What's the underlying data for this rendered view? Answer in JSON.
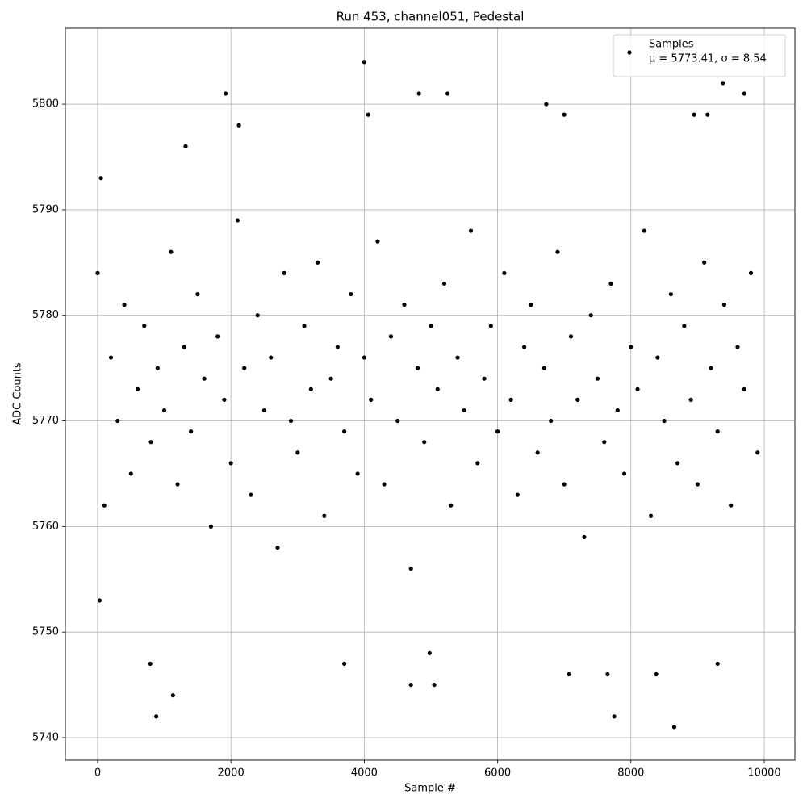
{
  "chart_data": {
    "type": "scatter",
    "title": "Run 453, channel051, Pedestal",
    "x_label": "Sample #",
    "y_label": "ADC Counts",
    "legend_note": "μ = 5773.41, σ = 8.54",
    "legend_position": "upper right",
    "grid": true,
    "xlim": [
      -484,
      10460
    ],
    "ylim": [
      5737.86,
      5807.19
    ],
    "xticks": [
      0,
      2000,
      4000,
      6000,
      8000,
      10000
    ],
    "yticks": [
      5740,
      5750,
      5760,
      5770,
      5780,
      5790,
      5800
    ],
    "series": [
      {
        "name": "Samples",
        "color": "#000000",
        "x": [
          0,
          100,
          200,
          300,
          400,
          500,
          600,
          700,
          800,
          900,
          1000,
          1100,
          1200,
          1300,
          1400,
          1500,
          1600,
          1700,
          1800,
          1900,
          2000,
          2100,
          2200,
          2300,
          2400,
          2500,
          2600,
          2700,
          2800,
          2900,
          3000,
          3100,
          3200,
          3300,
          3400,
          3500,
          3600,
          3700,
          3800,
          3900,
          4000,
          4100,
          4200,
          4300,
          4400,
          4500,
          4600,
          4700,
          4800,
          4900,
          5000,
          5100,
          5200,
          5300,
          5400,
          5500,
          5600,
          5700,
          5800,
          5900,
          6000,
          6100,
          6200,
          6300,
          6400,
          6500,
          6600,
          6700,
          6800,
          6900,
          7000,
          7100,
          7200,
          7300,
          7400,
          7500,
          7600,
          7700,
          7800,
          7900,
          8000,
          8100,
          8200,
          8300,
          8400,
          8500,
          8600,
          8700,
          8800,
          8900,
          9000,
          9100,
          9200,
          9300,
          9400,
          9500,
          9600,
          9700,
          9800,
          9900,
          880,
          1130,
          4000,
          8650,
          7750,
          9380,
          1920,
          4820,
          5250,
          6730,
          9700,
          7000,
          4060,
          9150,
          8950,
          4700,
          5050,
          7650,
          8380,
          7070,
          9300,
          3700,
          790,
          4980,
          30,
          50,
          1320,
          2120
        ],
        "values": [
          5784,
          5762,
          5776,
          5770,
          5781,
          5765,
          5773,
          5779,
          5768,
          5775,
          5771,
          5786,
          5764,
          5777,
          5769,
          5782,
          5774,
          5760,
          5778,
          5772,
          5766,
          5789,
          5775,
          5763,
          5780,
          5771,
          5776,
          5758,
          5784,
          5770,
          5767,
          5779,
          5773,
          5785,
          5761,
          5774,
          5777,
          5769,
          5782,
          5765,
          5776,
          5772,
          5787,
          5764,
          5778,
          5770,
          5781,
          5756,
          5775,
          5768,
          5779,
          5773,
          5783,
          5762,
          5776,
          5771,
          5788,
          5766,
          5774,
          5779,
          5769,
          5784,
          5772,
          5763,
          5777,
          5781,
          5767,
          5775,
          5770,
          5786,
          5764,
          5778,
          5772,
          5759,
          5780,
          5774,
          5768,
          5783,
          5771,
          5765,
          5777,
          5773,
          5788,
          5761,
          5776,
          5770,
          5782,
          5766,
          5779,
          5772,
          5764,
          5785,
          5775,
          5769,
          5781,
          5762,
          5777,
          5773,
          5784,
          5767,
          5742,
          5744,
          5804,
          5741,
          5742,
          5802,
          5801,
          5801,
          5801,
          5800,
          5801,
          5799,
          5799,
          5799,
          5799,
          5745,
          5745,
          5746,
          5746,
          5746,
          5747,
          5747,
          5747,
          5748,
          5753,
          5793,
          5796,
          5798
        ]
      }
    ]
  }
}
